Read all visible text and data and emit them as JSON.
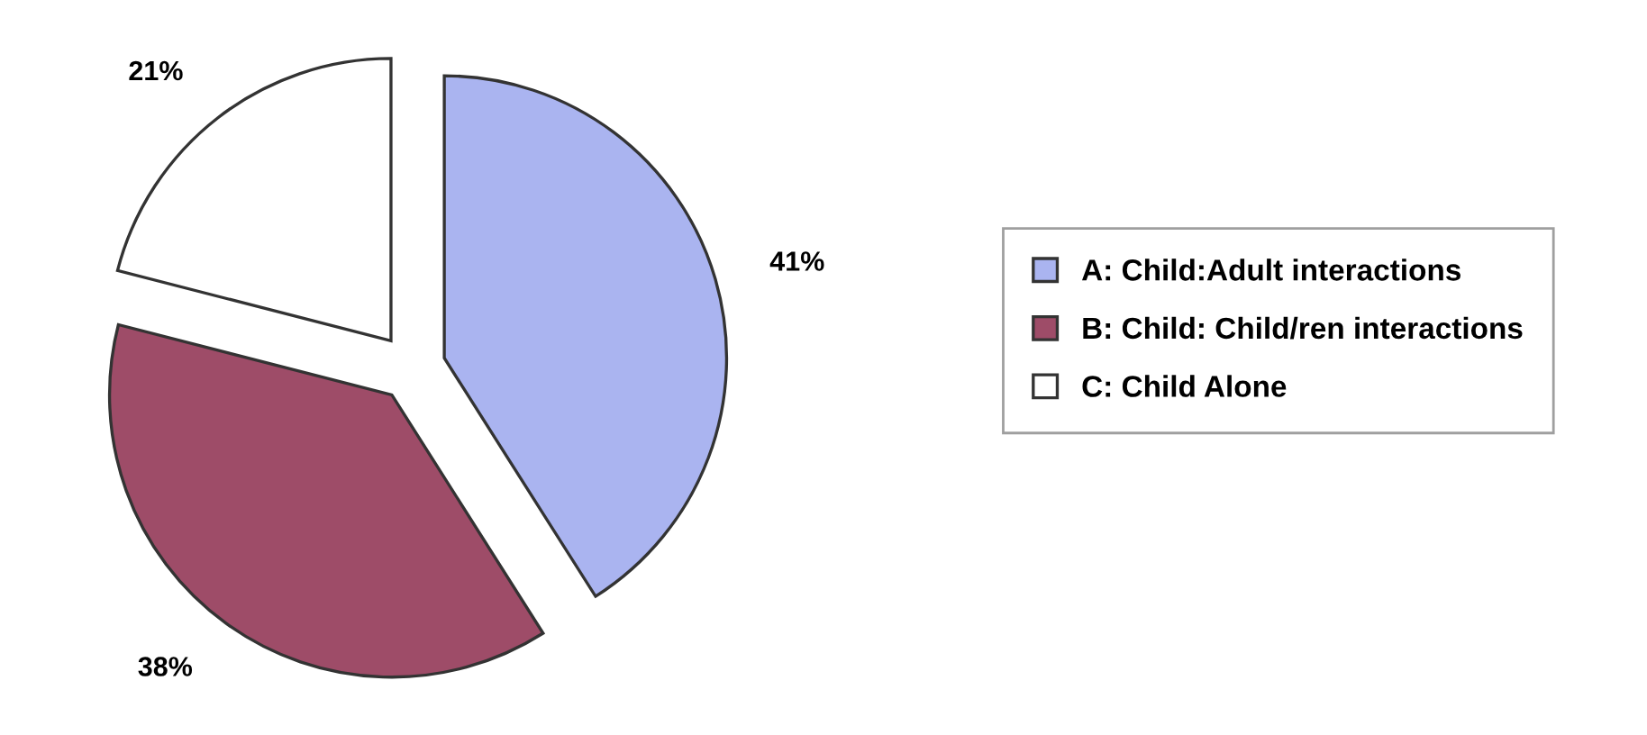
{
  "chart_data": {
    "type": "pie",
    "categories": [
      "A: Child:Adult interactions",
      "B: Child: Child/ren interactions",
      "C: Child Alone"
    ],
    "values": [
      41,
      38,
      21
    ],
    "value_labels": [
      "41%",
      "38%",
      "21%"
    ],
    "colors": [
      "#aab4f0",
      "#9e4c68",
      "#ffffff"
    ],
    "legend": "right"
  }
}
